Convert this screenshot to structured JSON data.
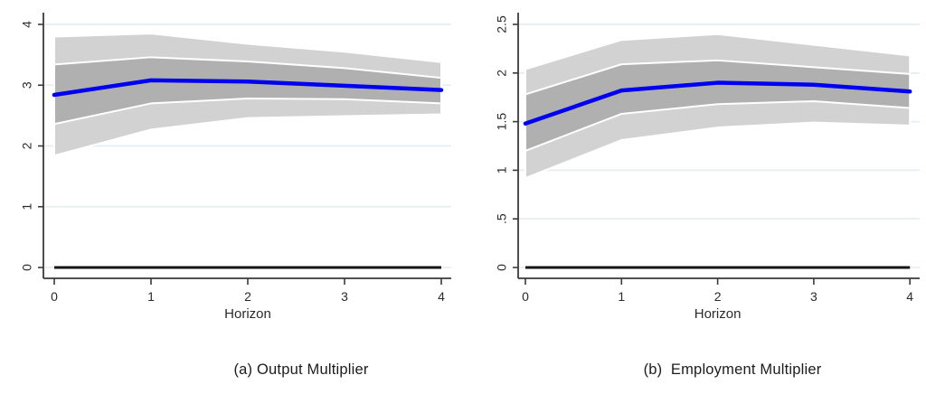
{
  "figure": {
    "background": "#ffffff",
    "palette": {
      "line": "#0000f0",
      "inner_band": "#b0b0b0",
      "outer_band": "#d2d2d2",
      "band_outline": "#ffffff",
      "gridline": "#e4eef3",
      "axis": "#3a3a3a",
      "zero_line": "#141414",
      "text": "#2a2a2a"
    }
  },
  "chart_data": [
    {
      "type": "line",
      "title": "(a) Output Multiplier",
      "xlabel": "Horizon",
      "x": [
        0,
        1,
        2,
        3,
        4
      ],
      "x_tick_labels": [
        "0",
        "1",
        "2",
        "3",
        "4"
      ],
      "y_ticks": [
        0,
        1,
        2,
        3,
        4
      ],
      "y_tick_labels": [
        "0",
        "1",
        "2",
        "3",
        "4"
      ],
      "ylim": [
        -0.13,
        4.17
      ],
      "xlim": [
        0,
        4
      ],
      "grid": true,
      "legend": false,
      "zero_line": 0,
      "series": [
        {
          "name": "outer-confidence-band",
          "kind": "band",
          "color": "#d2d2d2",
          "lower": [
            1.84,
            2.27,
            2.46,
            2.49,
            2.52
          ],
          "upper": [
            3.8,
            3.85,
            3.68,
            3.55,
            3.38
          ]
        },
        {
          "name": "inner-confidence-band",
          "kind": "band",
          "color": "#b0b0b0",
          "lower": [
            2.36,
            2.7,
            2.78,
            2.77,
            2.7
          ],
          "upper": [
            3.34,
            3.46,
            3.39,
            3.28,
            3.12
          ]
        },
        {
          "name": "point-estimate",
          "kind": "line",
          "color": "#0000f0",
          "values": [
            2.84,
            3.08,
            3.06,
            2.99,
            2.92
          ]
        }
      ]
    },
    {
      "type": "line",
      "title": "(b)  Employment Multiplier",
      "xlabel": "Horizon",
      "x": [
        0,
        1,
        2,
        3,
        4
      ],
      "x_tick_labels": [
        "0",
        "1",
        "2",
        "3",
        "4"
      ],
      "y_ticks": [
        0,
        0.5,
        1,
        1.5,
        2,
        2.5
      ],
      "y_tick_labels": [
        "0",
        ".5",
        "1",
        "1.5",
        "2",
        "2.5"
      ],
      "ylim": [
        -0.08,
        2.65
      ],
      "xlim": [
        0,
        4
      ],
      "grid": true,
      "legend": false,
      "zero_line": 0,
      "series": [
        {
          "name": "outer-confidence-band",
          "kind": "band",
          "color": "#d2d2d2",
          "lower": [
            0.92,
            1.31,
            1.44,
            1.49,
            1.46
          ],
          "upper": [
            2.04,
            2.34,
            2.4,
            2.29,
            2.18
          ]
        },
        {
          "name": "inner-confidence-band",
          "kind": "band",
          "color": "#b0b0b0",
          "lower": [
            1.2,
            1.58,
            1.68,
            1.71,
            1.64
          ],
          "upper": [
            1.78,
            2.09,
            2.13,
            2.06,
            1.99
          ]
        },
        {
          "name": "point-estimate",
          "kind": "line",
          "color": "#0000f0",
          "values": [
            1.48,
            1.82,
            1.9,
            1.88,
            1.81
          ]
        }
      ]
    }
  ]
}
